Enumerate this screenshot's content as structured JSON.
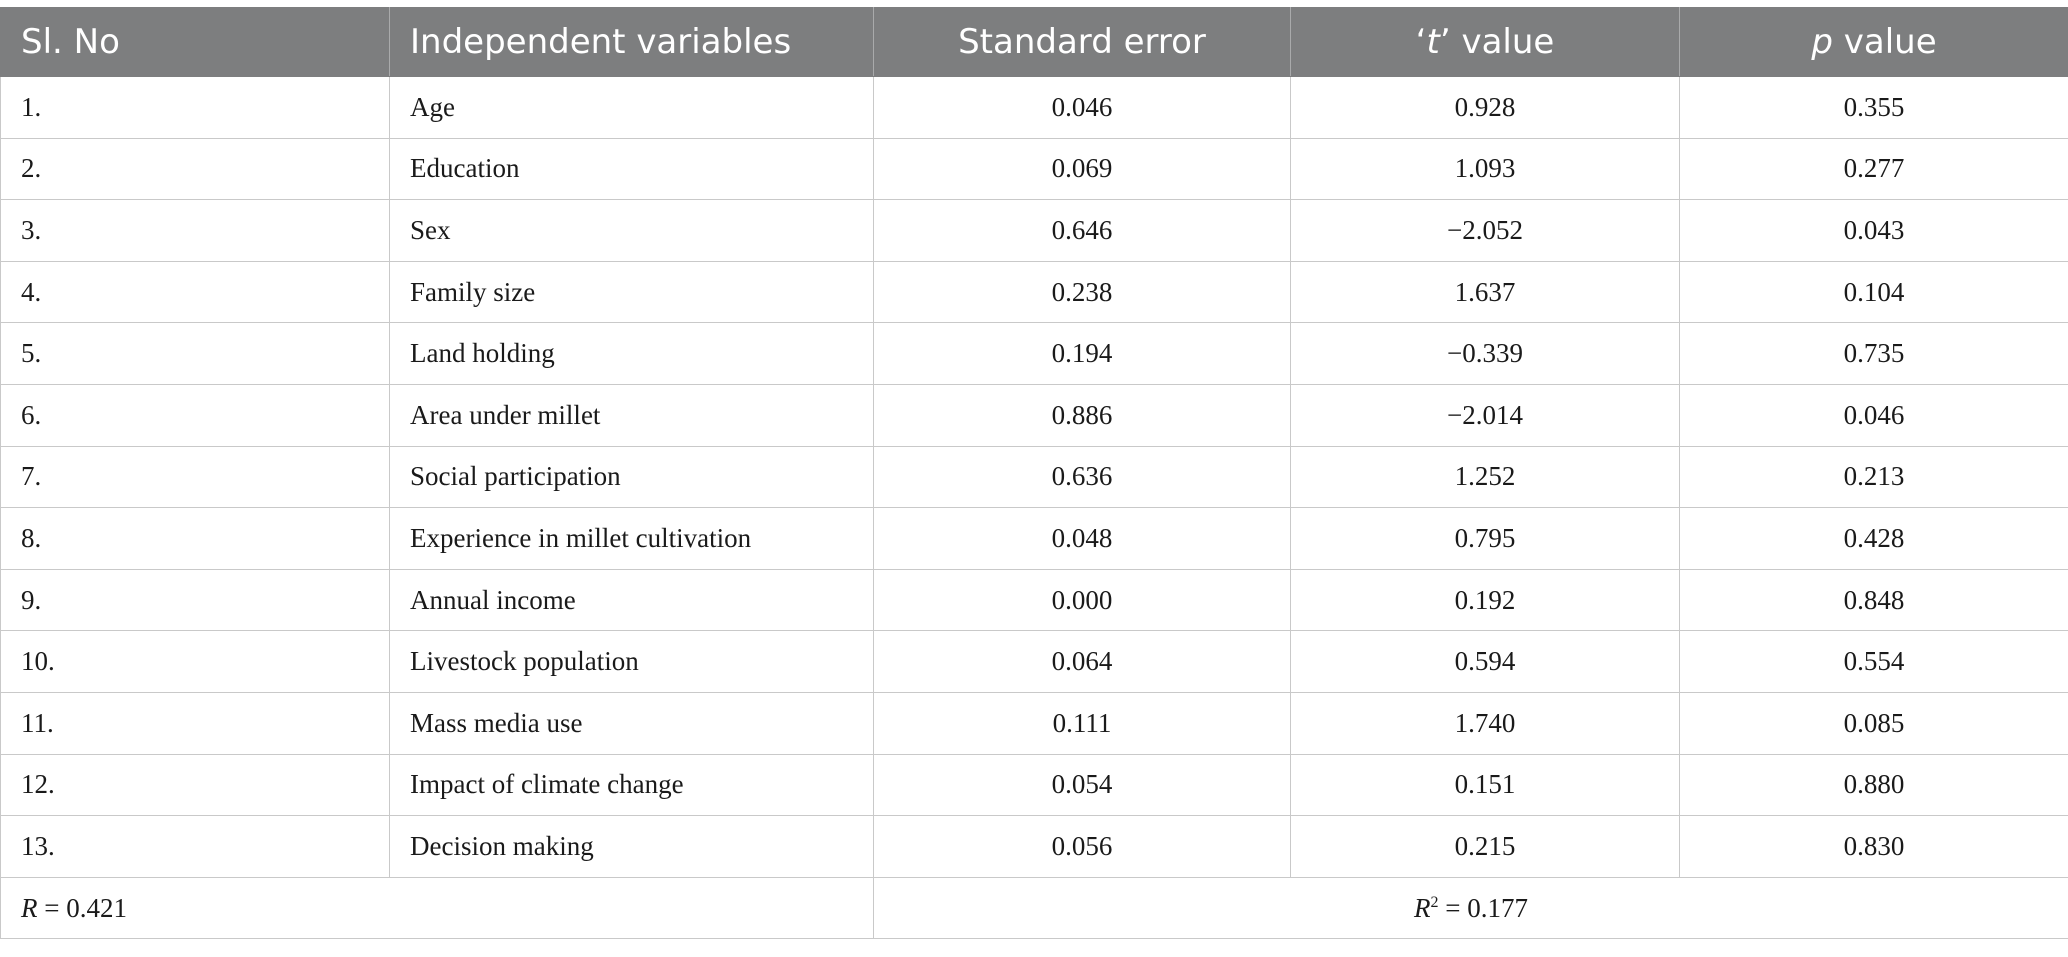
{
  "table": {
    "headers": {
      "sl_no": "Sl. No",
      "independent_variables": "Independent variables",
      "standard_error": "Standard error",
      "t_value_quote_open": "‘",
      "t_value_var": "t",
      "t_value_quote_close": "’",
      "t_value_suffix": " value",
      "p_value_var": "p",
      "p_value_suffix": " value"
    },
    "rows": [
      {
        "sl": "1.",
        "variable": "Age",
        "se": "0.046",
        "t": "0.928",
        "p": "0.355"
      },
      {
        "sl": "2.",
        "variable": "Education",
        "se": "0.069",
        "t": "1.093",
        "p": "0.277"
      },
      {
        "sl": "3.",
        "variable": "Sex",
        "se": "0.646",
        "t": "−2.052",
        "p": "0.043"
      },
      {
        "sl": "4.",
        "variable": "Family size",
        "se": "0.238",
        "t": "1.637",
        "p": "0.104"
      },
      {
        "sl": "5.",
        "variable": "Land holding",
        "se": "0.194",
        "t": "−0.339",
        "p": "0.735"
      },
      {
        "sl": "6.",
        "variable": "Area under millet",
        "se": "0.886",
        "t": "−2.014",
        "p": "0.046"
      },
      {
        "sl": "7.",
        "variable": "Social participation",
        "se": "0.636",
        "t": "1.252",
        "p": "0.213"
      },
      {
        "sl": "8.",
        "variable": "Experience in millet cultivation",
        "se": "0.048",
        "t": "0.795",
        "p": "0.428"
      },
      {
        "sl": "9.",
        "variable": "Annual income",
        "se": "0.000",
        "t": "0.192",
        "p": "0.848"
      },
      {
        "sl": "10.",
        "variable": "Livestock population",
        "se": "0.064",
        "t": "0.594",
        "p": "0.554"
      },
      {
        "sl": "11.",
        "variable": "Mass media use",
        "se": "0.111",
        "t": "1.740",
        "p": "0.085"
      },
      {
        "sl": "12.",
        "variable": "Impact of climate change",
        "se": "0.054",
        "t": "0.151",
        "p": "0.880"
      },
      {
        "sl": "13.",
        "variable": "Decision making",
        "se": "0.056",
        "t": "0.215",
        "p": "0.830"
      }
    ],
    "footer": {
      "r_var": "R",
      "r_rest": " = 0.421",
      "r2_var": "R",
      "r2_sup": "2",
      "r2_rest": " = 0.177"
    }
  }
}
